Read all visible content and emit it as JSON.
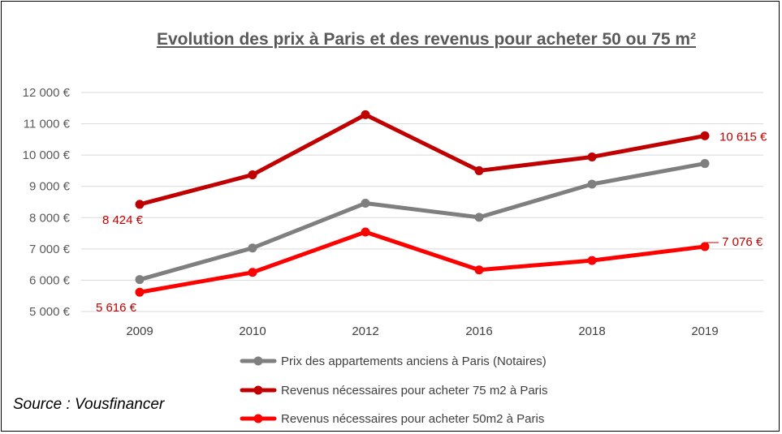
{
  "title": "Evolution des prix à Paris et des revenus pour acheter 50 ou 75 m²",
  "source": "Source : Vousfinancer",
  "chart_data": {
    "type": "line",
    "title": "Evolution des prix à Paris et des revenus pour acheter 50 ou 75 m²",
    "xlabel": "",
    "ylabel": "",
    "ylim": [
      5000,
      12000
    ],
    "yticks": [
      5000,
      6000,
      7000,
      8000,
      9000,
      10000,
      11000,
      12000
    ],
    "ytick_labels": [
      "5 000 €",
      "6 000 €",
      "7 000 €",
      "8 000 €",
      "9 000 €",
      "10 000 €",
      "11 000 €",
      "12 000 €"
    ],
    "categories": [
      "2009",
      "2010",
      "2012",
      "2016",
      "2018",
      "2019"
    ],
    "grid": true,
    "legend_position": "bottom",
    "series": [
      {
        "name": "Prix des appartements anciens à Paris (Notaires)",
        "color": "#7f7f7f",
        "values": [
          6020,
          7030,
          8460,
          8010,
          9070,
          9730
        ],
        "labels": {}
      },
      {
        "name": "Revenus nécessaires pour acheter 75 m2 à Paris",
        "color": "#c00000",
        "values": [
          8424,
          9370,
          11290,
          9500,
          9940,
          10615
        ],
        "labels": {
          "0": "8 424 €",
          "5": "10 615 €"
        }
      },
      {
        "name": "Revenus nécessaires pour acheter 50m2 à Paris",
        "color": "#ff0000",
        "values": [
          5616,
          6250,
          7540,
          6330,
          6630,
          7076
        ],
        "labels": {
          "0": "5 616 €",
          "5": "7 076 €"
        }
      }
    ]
  }
}
